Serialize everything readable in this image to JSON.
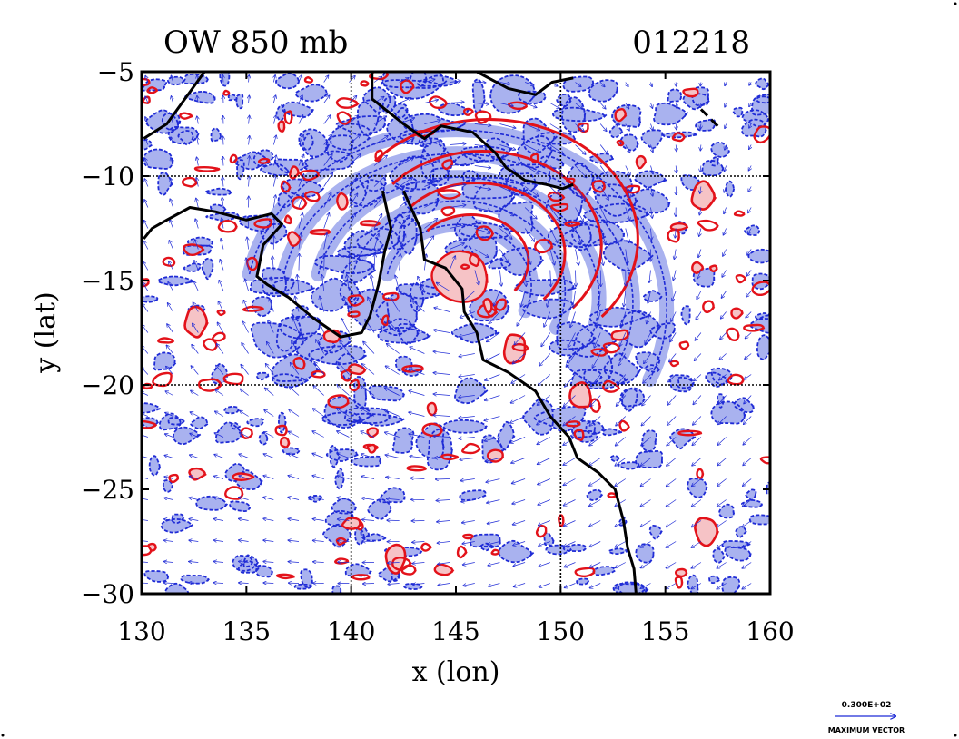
{
  "chart_data": {
    "type": "contour",
    "title_left": "OW 850 mb",
    "title_right": "012218",
    "xlabel": "x (lon)",
    "ylabel": "y (lat)",
    "xlim": [
      130,
      160
    ],
    "ylim": [
      -30,
      -5
    ],
    "xticks": [
      130,
      135,
      140,
      145,
      150,
      155,
      160
    ],
    "yticks": [
      -5,
      -10,
      -15,
      -20,
      -25,
      -30
    ],
    "gridlines_x": [
      140,
      150
    ],
    "gridlines_y": [
      -10,
      -20
    ],
    "grid": "dotted at 10-degree lon/lat",
    "colors": {
      "negative_contour": "#1f2bd6",
      "negative_fill": "#a9b2ef",
      "positive_contour": "#e3121a",
      "positive_fill": "#f6c3c6",
      "vector": "#1f2bd6",
      "coastline": "#000000"
    },
    "vector_key": {
      "magnitude_label": "0.300E+02",
      "caption": "MAXIMUM VECTOR"
    },
    "features": [
      {
        "kind": "cyclone-center",
        "lon": 145.2,
        "lat": -14.7
      },
      {
        "kind": "positive-max",
        "lon": 156.9,
        "lat": -27.0
      },
      {
        "kind": "positive-max",
        "lon": 142.1,
        "lat": -28.3
      },
      {
        "kind": "positive-max",
        "lon": 156.8,
        "lat": -11.0
      },
      {
        "kind": "positive-max",
        "lon": 132.6,
        "lat": -17.0
      },
      {
        "kind": "positive-max",
        "lon": 147.8,
        "lat": -18.3
      },
      {
        "kind": "positive-max",
        "lon": 151.0,
        "lat": -20.5
      }
    ]
  }
}
